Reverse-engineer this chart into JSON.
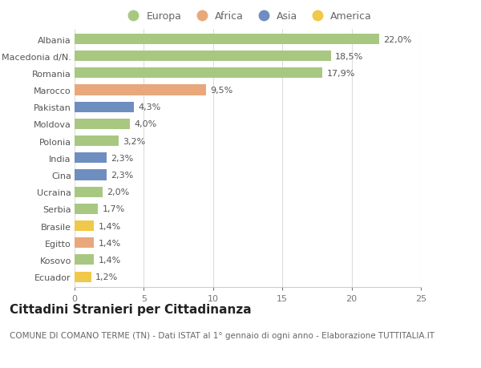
{
  "countries": [
    "Albania",
    "Macedonia d/N.",
    "Romania",
    "Marocco",
    "Pakistan",
    "Moldova",
    "Polonia",
    "India",
    "Cina",
    "Ucraina",
    "Serbia",
    "Brasile",
    "Egitto",
    "Kosovo",
    "Ecuador"
  ],
  "values": [
    22.0,
    18.5,
    17.9,
    9.5,
    4.3,
    4.0,
    3.2,
    2.3,
    2.3,
    2.0,
    1.7,
    1.4,
    1.4,
    1.4,
    1.2
  ],
  "labels": [
    "22,0%",
    "18,5%",
    "17,9%",
    "9,5%",
    "4,3%",
    "4,0%",
    "3,2%",
    "2,3%",
    "2,3%",
    "2,0%",
    "1,7%",
    "1,4%",
    "1,4%",
    "1,4%",
    "1,2%"
  ],
  "continents": [
    "Europa",
    "Europa",
    "Europa",
    "Africa",
    "Asia",
    "Europa",
    "Europa",
    "Asia",
    "Asia",
    "Europa",
    "Europa",
    "America",
    "Africa",
    "Europa",
    "America"
  ],
  "continent_colors": {
    "Europa": "#a8c882",
    "Africa": "#e8a87c",
    "Asia": "#6e8ec0",
    "America": "#f0c84a"
  },
  "legend_order": [
    "Europa",
    "Africa",
    "Asia",
    "America"
  ],
  "title": "Cittadini Stranieri per Cittadinanza",
  "subtitle": "COMUNE DI COMANO TERME (TN) - Dati ISTAT al 1° gennaio di ogni anno - Elaborazione TUTTITALIA.IT",
  "xlim": [
    0,
    25
  ],
  "xticks": [
    0,
    5,
    10,
    15,
    20,
    25
  ],
  "bg_color": "#ffffff",
  "plot_bg_color": "#ffffff",
  "grid_color": "#dddddd",
  "title_fontsize": 11,
  "subtitle_fontsize": 7.5,
  "label_fontsize": 8,
  "tick_fontsize": 8,
  "legend_fontsize": 9
}
